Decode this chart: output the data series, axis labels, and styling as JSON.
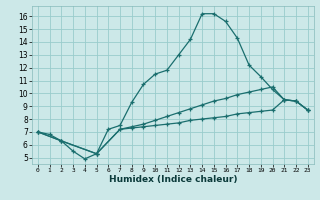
{
  "xlabel": "Humidex (Indice chaleur)",
  "bg_color": "#cce8e8",
  "grid_color": "#99cccc",
  "line_color": "#1a6e6e",
  "xlim": [
    -0.5,
    23.5
  ],
  "ylim": [
    4.5,
    16.8
  ],
  "xticks": [
    0,
    1,
    2,
    3,
    4,
    5,
    6,
    7,
    8,
    9,
    10,
    11,
    12,
    13,
    14,
    15,
    16,
    17,
    18,
    19,
    20,
    21,
    22,
    23
  ],
  "yticks": [
    5,
    6,
    7,
    8,
    9,
    10,
    11,
    12,
    13,
    14,
    15,
    16
  ],
  "line1_x": [
    0,
    1,
    2,
    3,
    4,
    5,
    6,
    7,
    8,
    9,
    10,
    11,
    12,
    13,
    14,
    15,
    16,
    17,
    18,
    19,
    20,
    21,
    22,
    23
  ],
  "line1_y": [
    7.0,
    6.8,
    6.3,
    5.5,
    4.9,
    5.3,
    7.2,
    7.5,
    9.3,
    10.7,
    11.5,
    11.8,
    13.0,
    14.2,
    16.2,
    16.2,
    15.6,
    14.3,
    12.2,
    11.3,
    10.3,
    9.5,
    9.4,
    8.7
  ],
  "line2_x": [
    0,
    2,
    5,
    7,
    8,
    9,
    10,
    11,
    12,
    13,
    14,
    15,
    16,
    17,
    18,
    19,
    20,
    21,
    22,
    23
  ],
  "line2_y": [
    7.0,
    6.3,
    5.3,
    7.2,
    7.4,
    7.6,
    7.9,
    8.2,
    8.5,
    8.8,
    9.1,
    9.4,
    9.6,
    9.9,
    10.1,
    10.3,
    10.5,
    9.5,
    9.4,
    8.7
  ],
  "line3_x": [
    0,
    2,
    5,
    7,
    8,
    9,
    10,
    11,
    12,
    13,
    14,
    15,
    16,
    17,
    18,
    19,
    20,
    21,
    22,
    23
  ],
  "line3_y": [
    7.0,
    6.3,
    5.3,
    7.2,
    7.3,
    7.4,
    7.5,
    7.6,
    7.7,
    7.9,
    8.0,
    8.1,
    8.2,
    8.4,
    8.5,
    8.6,
    8.7,
    9.5,
    9.4,
    8.7
  ]
}
